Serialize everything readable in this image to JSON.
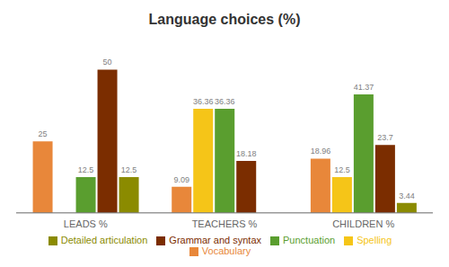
{
  "chart_data": {
    "type": "bar",
    "title": "Language choices (%)",
    "categories": [
      "LEADS %",
      "TEACHERS %",
      "CHILDREN %"
    ],
    "series": [
      {
        "name": "Vocabulary",
        "color": "#E8873A",
        "values": [
          25,
          9.09,
          18.96
        ]
      },
      {
        "name": "Spelling",
        "color": "#F5C518",
        "values": [
          0,
          36.36,
          12.5
        ]
      },
      {
        "name": "Punctuation",
        "color": "#5A9E2F",
        "values": [
          12.5,
          36.36,
          41.37
        ]
      },
      {
        "name": "Grammar and syntax",
        "color": "#7B2D00",
        "values": [
          50,
          18.18,
          23.7
        ]
      },
      {
        "name": "Detailed articulation",
        "color": "#8B8B00",
        "values": [
          12.5,
          0,
          3.44
        ]
      }
    ],
    "ylim": [
      0,
      58
    ],
    "data_labels": true,
    "legend": "bottom",
    "tick_labels": "x"
  }
}
